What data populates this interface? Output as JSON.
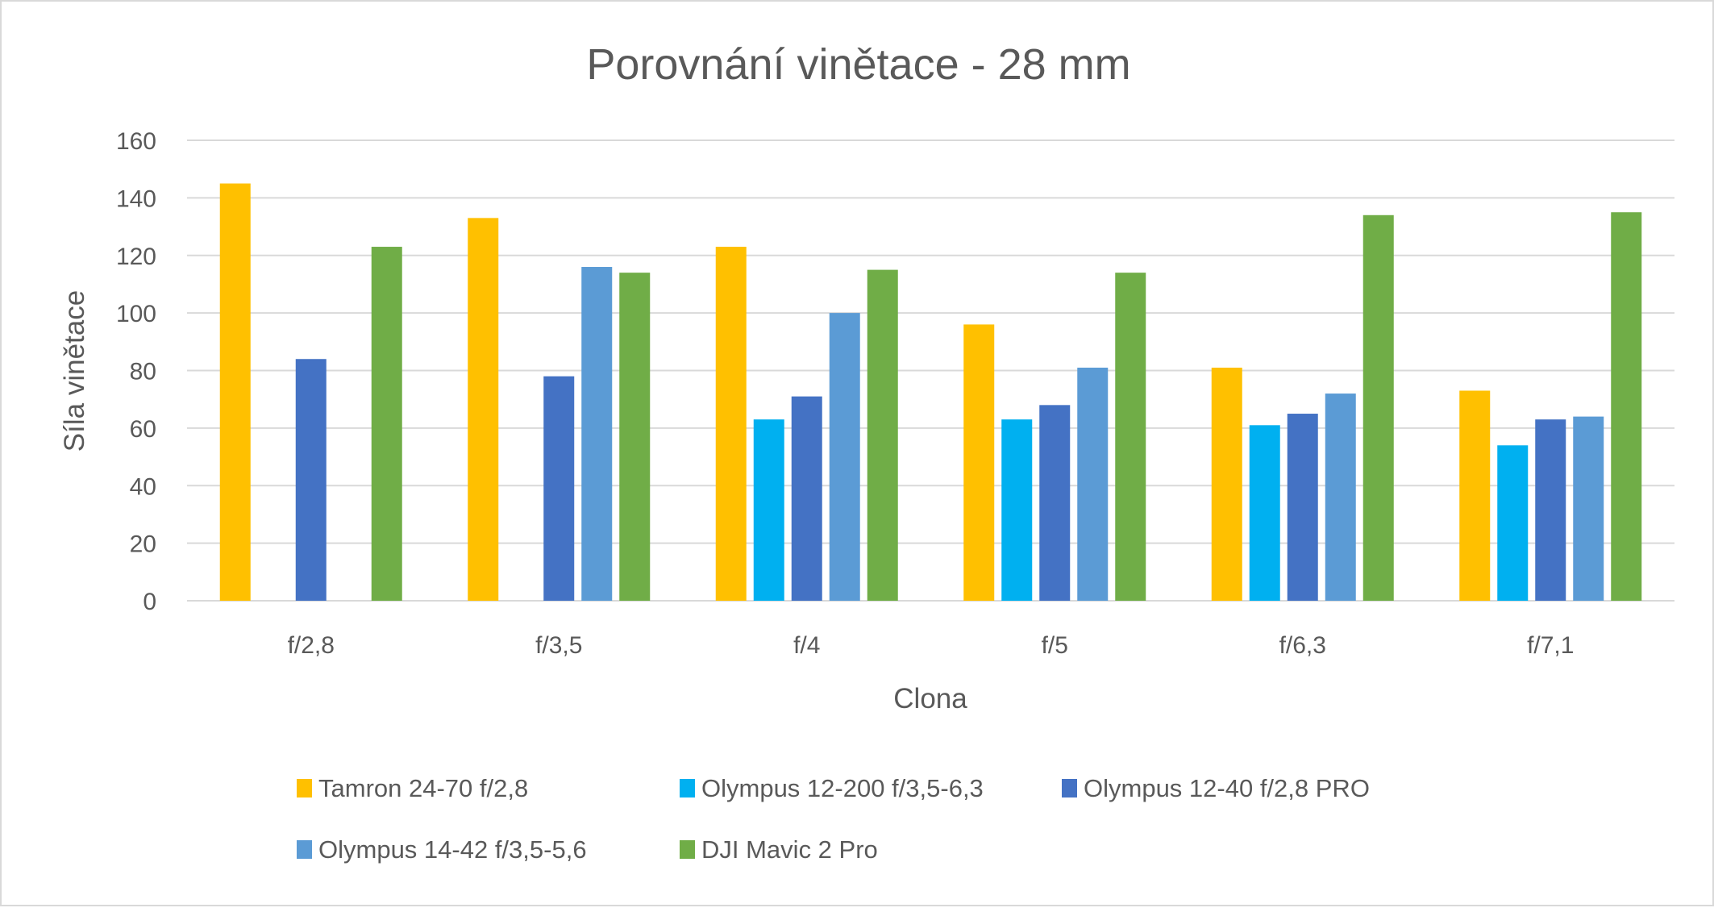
{
  "chart_data": {
    "type": "bar",
    "title": "Porovnání vinětace - 28 mm",
    "xlabel": "Clona",
    "ylabel": "Síla vinětace",
    "ylim": [
      0,
      160
    ],
    "yticks": [
      0,
      20,
      40,
      60,
      80,
      100,
      120,
      140,
      160
    ],
    "grid": true,
    "legend_position": "bottom",
    "categories": [
      "f/2,8",
      "f/3,5",
      "f/4",
      "f/5",
      "f/6,3",
      "f/7,1"
    ],
    "series": [
      {
        "name": "Tamron 24-70 f/2,8",
        "color": "#FFC000",
        "values": [
          145,
          133,
          123,
          96,
          81,
          73
        ]
      },
      {
        "name": "Olympus 12-200 f/3,5-6,3",
        "color": "#00B0F0",
        "values": [
          null,
          null,
          63,
          63,
          61,
          54
        ]
      },
      {
        "name": "Olympus 12-40 f/2,8 PRO",
        "color": "#4472C4",
        "values": [
          84,
          78,
          71,
          68,
          65,
          63
        ]
      },
      {
        "name": "Olympus 14-42 f/3,5-5,6",
        "color": "#5B9BD5",
        "values": [
          null,
          116,
          100,
          81,
          72,
          64
        ]
      },
      {
        "name": "DJI Mavic 2 Pro",
        "color": "#70AD47",
        "values": [
          123,
          114,
          115,
          114,
          134,
          135
        ]
      }
    ]
  }
}
